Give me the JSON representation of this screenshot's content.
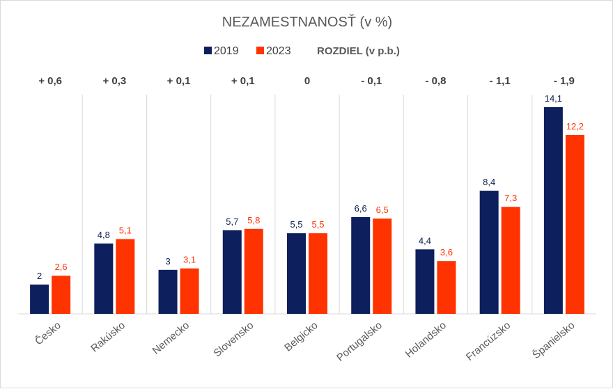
{
  "chart_data": {
    "type": "bar",
    "title": "NEZAMESTNANOSŤ (v %)",
    "legend_extra": "ROZDIEL (v p.b.)",
    "legend_position": "top",
    "categories": [
      "Česko",
      "Rakúsko",
      "Nemecko",
      "Slovensko",
      "Belgicko",
      "Portugalsko",
      "Holandsko",
      "Francúzsko",
      "Španielsko"
    ],
    "series": [
      {
        "name": "2019",
        "color": "#0d1f5c",
        "values": [
          2,
          4.8,
          3,
          5.7,
          5.5,
          6.6,
          4.4,
          8.4,
          14.1
        ],
        "labels": [
          "2",
          "4,8",
          "3",
          "5,7",
          "5,5",
          "6,6",
          "4,4",
          "8,4",
          "14,1"
        ]
      },
      {
        "name": "2023",
        "color": "#ff3300",
        "values": [
          2.6,
          5.1,
          3.1,
          5.8,
          5.5,
          6.5,
          3.6,
          7.3,
          12.2
        ],
        "labels": [
          "2,6",
          "5,1",
          "3,1",
          "5,8",
          "5,5",
          "6,5",
          "3,6",
          "7,3",
          "12,2"
        ]
      }
    ],
    "differences": [
      "+ 0,6",
      "+ 0,3",
      "+ 0,1",
      "+ 0,1",
      "0",
      "- 0,1",
      "- 0,8",
      "- 1,1",
      "- 1,9"
    ],
    "ylim": [
      0,
      14.1
    ],
    "grid": "vertical-separators",
    "xlabel": "",
    "ylabel": ""
  }
}
